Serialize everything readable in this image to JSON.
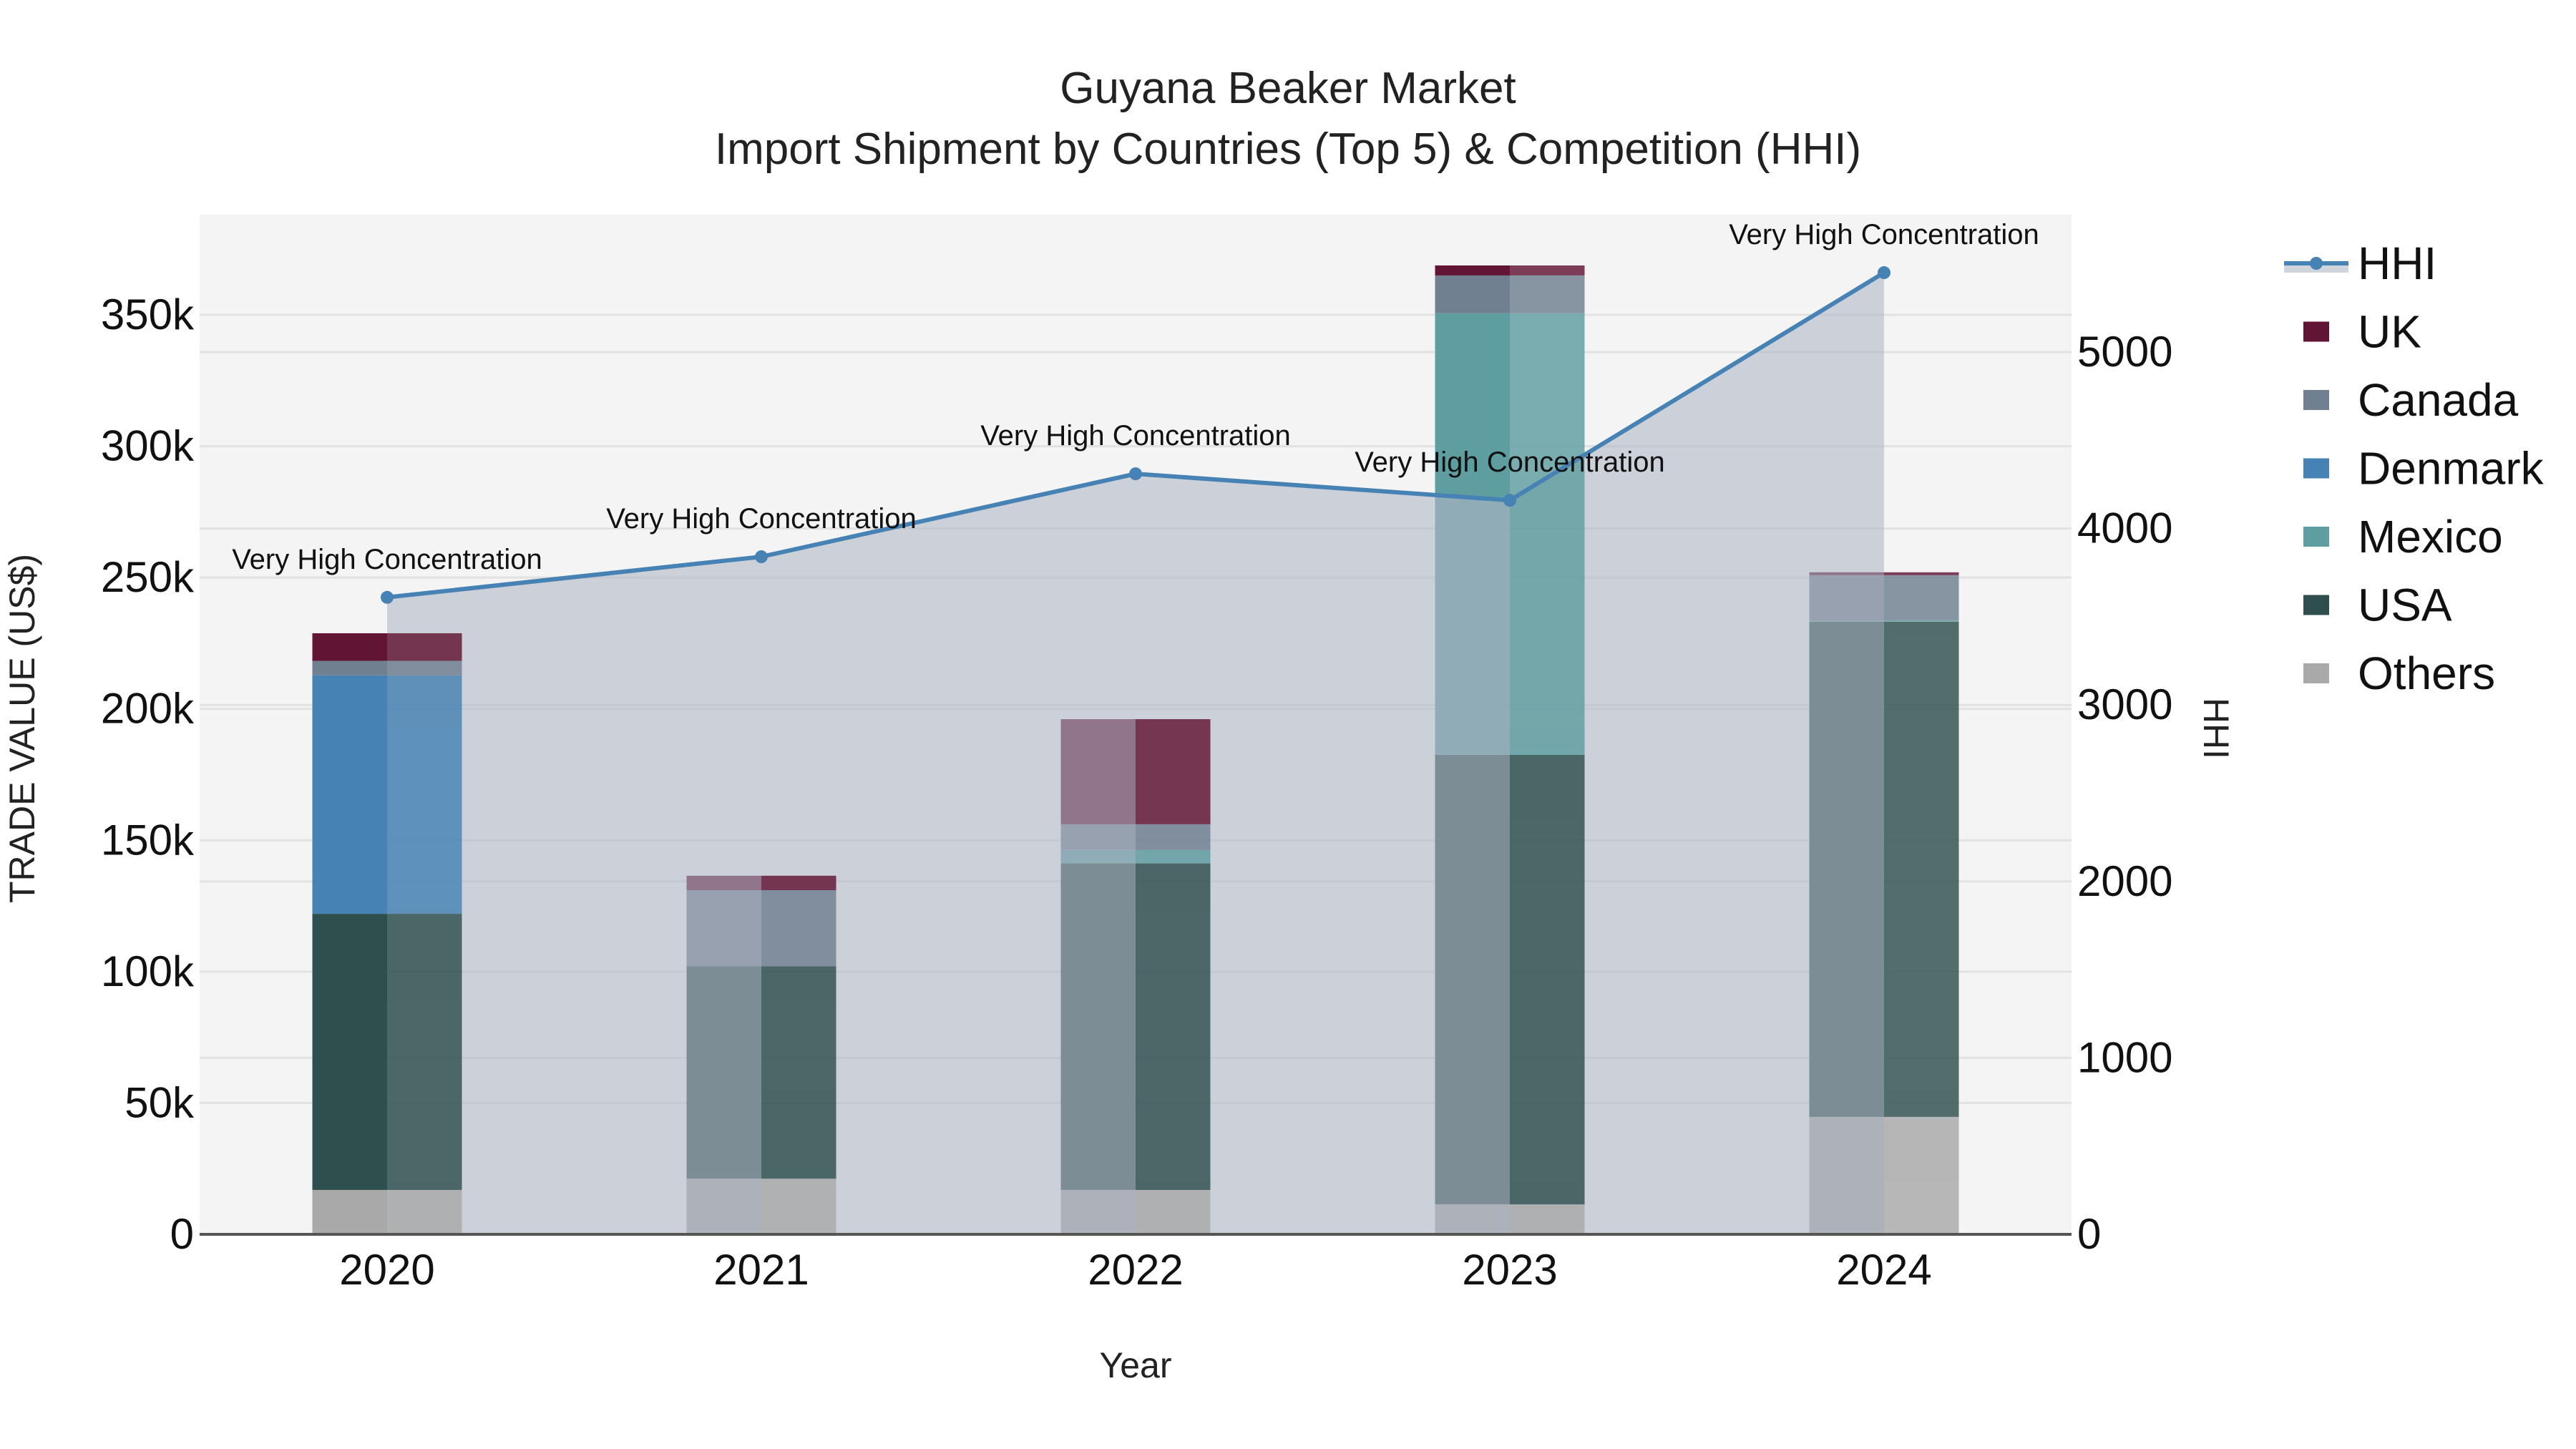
{
  "header": {
    "title_line1": "Guyana Beaker Market",
    "title_line2": "Import Shipment by Countries (Top 5) & Competition (HHI)"
  },
  "axes": {
    "x_title": "Year",
    "y_left_title": "TRADE VALUE (US$)",
    "y_right_title": "HHI",
    "y_left_ticks": [
      "0",
      "50k",
      "100k",
      "150k",
      "200k",
      "250k",
      "300k",
      "350k"
    ],
    "y_right_ticks": [
      "0",
      "1000",
      "2000",
      "3000",
      "4000",
      "5000"
    ]
  },
  "legend": {
    "items": [
      {
        "label": "HHI",
        "type": "line",
        "color": "#4682b4"
      },
      {
        "label": "UK",
        "type": "square",
        "color": "#611434"
      },
      {
        "label": "Canada",
        "type": "square",
        "color": "#708090"
      },
      {
        "label": "Denmark",
        "type": "square",
        "color": "#4682b4"
      },
      {
        "label": "Mexico",
        "type": "square",
        "color": "#5f9ea0"
      },
      {
        "label": "USA",
        "type": "square",
        "color": "#2f4f4f"
      },
      {
        "label": "Others",
        "type": "square",
        "color": "#a9a9a9"
      }
    ]
  },
  "colors": {
    "plot_bg": "#f4f4f4",
    "grid": "#e2e2e2",
    "hhi_line": "#4682b4",
    "hhi_fill": "rgba(176,184,198,0.6)",
    "axis_line": "#555555"
  },
  "chart_data": {
    "type": "bar",
    "title": "Guyana Beaker Market — Import Shipment by Countries (Top 5) & Competition (HHI)",
    "xlabel": "Year",
    "ylabel": "TRADE VALUE (US$)",
    "y2label": "HHI",
    "stacked": true,
    "categories": [
      "2020",
      "2021",
      "2022",
      "2023",
      "2024"
    ],
    "ylim": [
      0,
      388000
    ],
    "y2lim": [
      0,
      5780
    ],
    "grid": true,
    "legend_position": "right",
    "series": [
      {
        "name": "Others",
        "color": "#a9a9a9",
        "values": [
          16900,
          21200,
          16900,
          11400,
          44700
        ]
      },
      {
        "name": "USA",
        "color": "#2f4f4f",
        "values": [
          105100,
          80800,
          124300,
          171100,
          188500
        ]
      },
      {
        "name": "Mexico",
        "color": "#5f9ea0",
        "values": [
          0,
          0,
          5100,
          168100,
          500
        ]
      },
      {
        "name": "Denmark",
        "color": "#4682b4",
        "values": [
          90800,
          0,
          0,
          0,
          0
        ]
      },
      {
        "name": "Canada",
        "color": "#708090",
        "values": [
          5500,
          29000,
          9800,
          14400,
          17200
        ]
      },
      {
        "name": "UK",
        "color": "#611434",
        "values": [
          10500,
          5500,
          40000,
          3800,
          1100
        ]
      }
    ],
    "line_series": {
      "name": "HHI",
      "axis": "right",
      "color": "#4682b4",
      "values": [
        3610,
        3840,
        4310,
        4160,
        5450
      ],
      "annotations": [
        "Very High Concentration",
        "Very High Concentration",
        "Very High Concentration",
        "Very High Concentration",
        "Very High Concentration"
      ]
    }
  }
}
